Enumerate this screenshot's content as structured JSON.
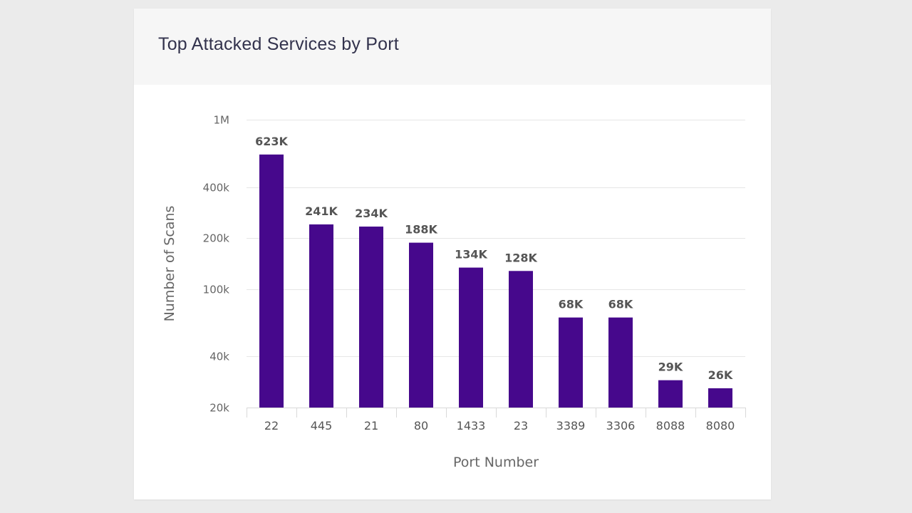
{
  "card": {
    "title": "Top Attacked Services by Port"
  },
  "chart_data": {
    "type": "bar",
    "title": "Top Attacked Services by Port",
    "xlabel": "Port Number",
    "ylabel": "Number of Scans",
    "y_scale": "log",
    "ylim": [
      20000,
      1000000
    ],
    "y_ticks": [
      {
        "value": 20000,
        "label": "20k"
      },
      {
        "value": 40000,
        "label": "40k"
      },
      {
        "value": 100000,
        "label": "100k"
      },
      {
        "value": 200000,
        "label": "200k"
      },
      {
        "value": 400000,
        "label": "400k"
      },
      {
        "value": 1000000,
        "label": "1M"
      }
    ],
    "categories": [
      "22",
      "445",
      "21",
      "80",
      "1433",
      "23",
      "3389",
      "3306",
      "8088",
      "8080"
    ],
    "values": [
      623000,
      241000,
      234000,
      188000,
      134000,
      128000,
      68000,
      68000,
      29000,
      26000
    ],
    "data_labels": [
      "623K",
      "241K",
      "234K",
      "188K",
      "134K",
      "128K",
      "68K",
      "68K",
      "29K",
      "26K"
    ],
    "grid": true,
    "legend": "none",
    "colors": {
      "bar": "#46088c"
    }
  }
}
